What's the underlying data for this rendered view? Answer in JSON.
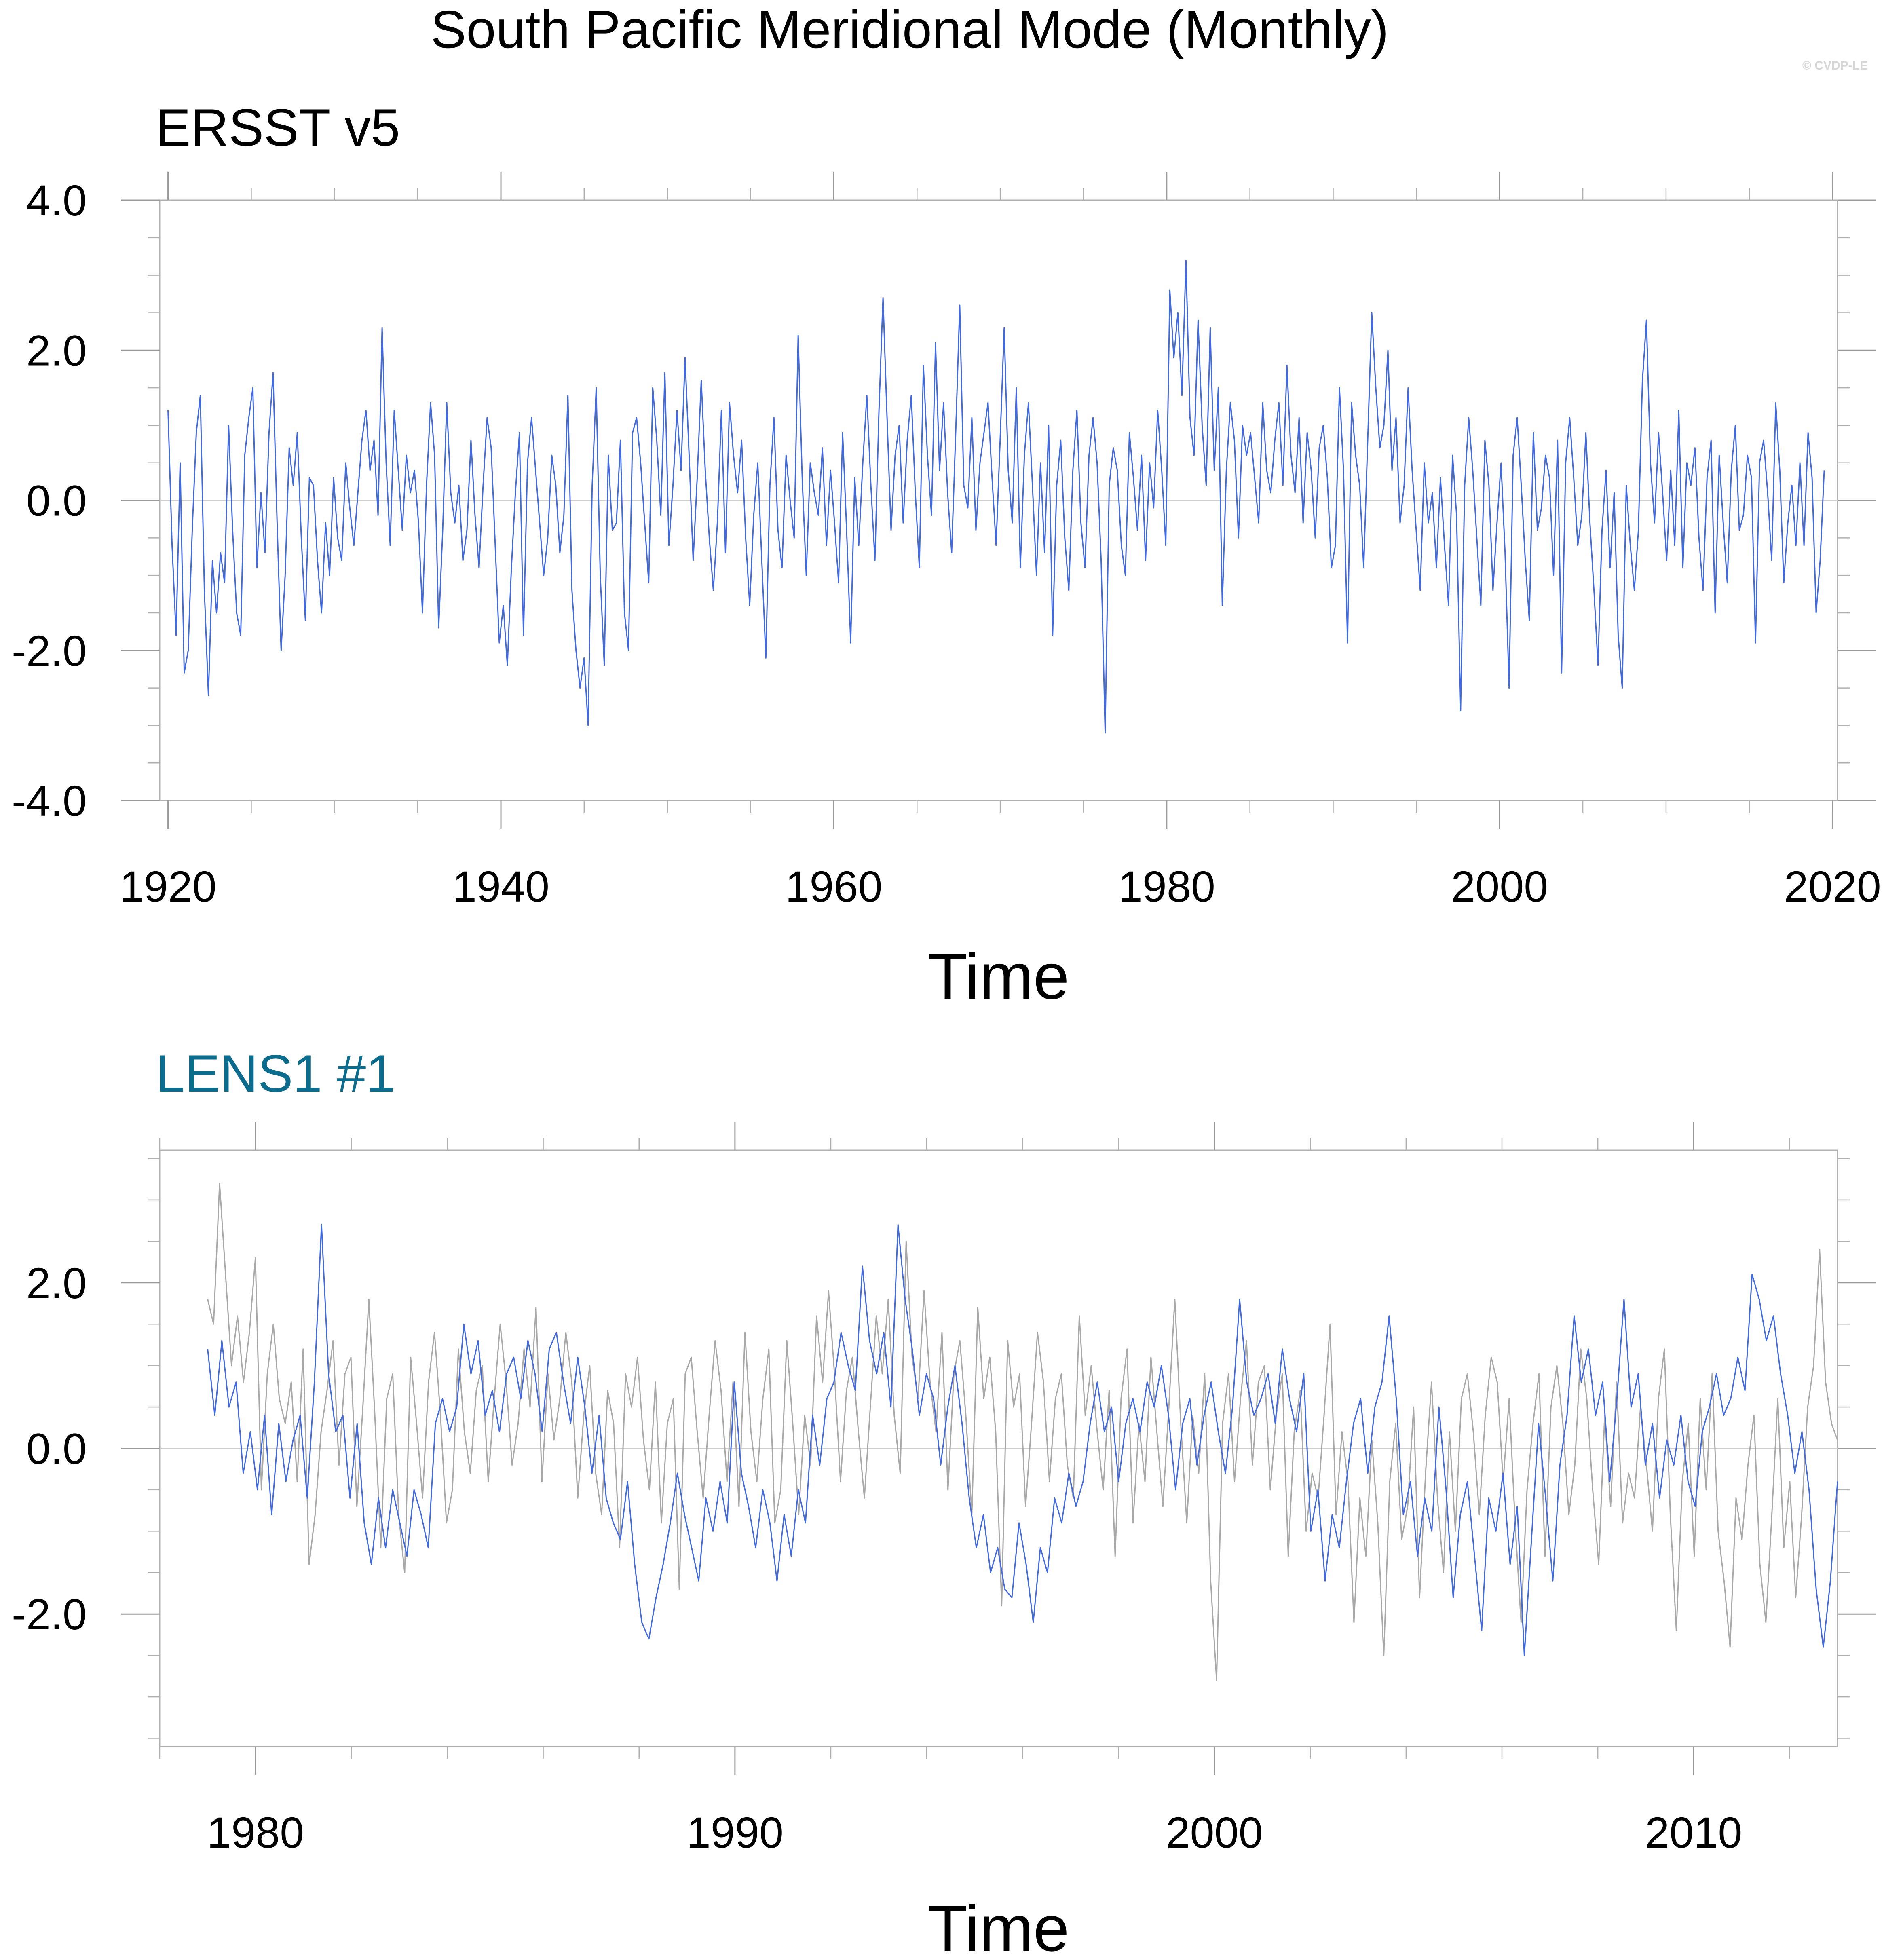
{
  "figure": {
    "title": "South Pacific Meridional Mode (Monthly)",
    "watermark": "© CVDP-LE"
  },
  "chart_data": [
    {
      "type": "line",
      "panel_title": "ERSST v5",
      "panel_title_color": "#000000",
      "xlabel": "Time",
      "ylabel": "",
      "xlim": [
        1919.5,
        2020.3
      ],
      "ylim": [
        -4.0,
        4.0
      ],
      "x_ticks": [
        1920,
        1940,
        1960,
        1980,
        2000,
        2020
      ],
      "x_tick_labels": [
        "1920",
        "1940",
        "1960",
        "1980",
        "2000",
        "2020"
      ],
      "y_ticks": [
        -4.0,
        -2.0,
        0.0,
        2.0,
        4.0
      ],
      "y_tick_labels": [
        "-4.0",
        "-2.0",
        "0.0",
        "2.0",
        "4.0"
      ],
      "zero_line": true,
      "grid": false,
      "series": [
        {
          "color": "#4169e1",
          "x_start": 1920.0,
          "x_end": 2019.5,
          "values": [
            1.2,
            -0.6,
            -1.8,
            0.5,
            -2.3,
            -2.0,
            -0.4,
            0.9,
            1.4,
            -1.2,
            -2.6,
            -0.8,
            -1.5,
            -0.7,
            -1.1,
            1.0,
            -0.4,
            -1.5,
            -1.8,
            0.6,
            1.1,
            1.5,
            -0.9,
            0.1,
            -0.7,
            0.9,
            1.7,
            -0.3,
            -2.0,
            -1.0,
            0.7,
            0.2,
            0.9,
            -0.5,
            -1.6,
            0.3,
            0.2,
            -0.8,
            -1.5,
            -0.3,
            -1.0,
            0.3,
            -0.5,
            -0.8,
            0.5,
            -0.1,
            -0.6,
            0.1,
            0.8,
            1.2,
            0.4,
            0.8,
            -0.2,
            2.3,
            0.5,
            -0.6,
            1.2,
            0.4,
            -0.4,
            0.6,
            0.1,
            0.4,
            -0.3,
            -1.5,
            0.2,
            1.3,
            0.6,
            -1.7,
            -0.4,
            1.3,
            0.1,
            -0.3,
            0.2,
            -0.8,
            -0.4,
            0.8,
            -0.2,
            -0.9,
            0.2,
            1.1,
            0.7,
            -0.6,
            -1.9,
            -1.4,
            -2.2,
            -0.9,
            0.1,
            0.9,
            -1.8,
            0.5,
            1.1,
            0.4,
            -0.3,
            -1.0,
            -0.5,
            0.6,
            0.2,
            -0.7,
            -0.2,
            1.4,
            -1.2,
            -2.0,
            -2.5,
            -2.1,
            -3.0,
            0.2,
            1.5,
            -1.0,
            -2.2,
            0.6,
            -0.4,
            -0.3,
            0.8,
            -1.5,
            -2.0,
            0.9,
            1.1,
            0.5,
            -0.3,
            -1.1,
            1.5,
            0.8,
            -0.2,
            1.7,
            -0.6,
            0.2,
            1.2,
            0.4,
            1.9,
            0.6,
            -0.8,
            0.3,
            1.6,
            0.4,
            -0.5,
            -1.2,
            -0.3,
            1.2,
            -0.7,
            1.3,
            0.6,
            0.1,
            0.8,
            -0.5,
            -1.4,
            -0.2,
            0.5,
            -0.8,
            -2.1,
            0.2,
            1.1,
            -0.4,
            -0.9,
            0.6,
            0.0,
            -0.5,
            2.2,
            0.3,
            -1.0,
            0.5,
            0.1,
            -0.2,
            0.7,
            -0.6,
            0.4,
            -0.3,
            -1.1,
            0.9,
            -0.4,
            -1.9,
            0.3,
            -0.6,
            0.5,
            1.4,
            0.2,
            -0.8,
            1.2,
            2.7,
            1.1,
            -0.4,
            0.6,
            1.0,
            -0.3,
            0.8,
            1.4,
            0.1,
            -0.9,
            1.8,
            0.6,
            -0.2,
            2.1,
            0.4,
            1.3,
            0.1,
            -0.7,
            0.9,
            2.6,
            0.2,
            -0.1,
            1.1,
            -0.4,
            0.5,
            0.9,
            1.3,
            0.3,
            -0.6,
            0.8,
            2.3,
            0.4,
            -0.3,
            1.5,
            -0.9,
            0.6,
            1.3,
            0.2,
            -1.0,
            0.5,
            -0.7,
            1.0,
            -1.8,
            0.2,
            0.8,
            -0.5,
            -1.2,
            0.4,
            1.2,
            -0.3,
            -0.9,
            0.6,
            1.1,
            0.5,
            -0.8,
            -3.1,
            0.2,
            0.7,
            0.4,
            -0.6,
            -1.0,
            0.9,
            0.3,
            -0.4,
            0.6,
            -0.8,
            0.5,
            -0.1,
            1.2,
            0.4,
            -0.6,
            2.8,
            1.9,
            2.5,
            1.4,
            3.2,
            1.1,
            0.6,
            2.4,
            1.0,
            0.2,
            2.3,
            0.4,
            1.5,
            -1.4,
            0.4,
            1.3,
            0.8,
            -0.5,
            1.0,
            0.6,
            0.9,
            0.3,
            -0.3,
            1.3,
            0.4,
            0.1,
            0.8,
            1.3,
            0.2,
            1.8,
            0.6,
            0.1,
            1.1,
            -0.3,
            0.9,
            0.4,
            -0.5,
            0.7,
            1.0,
            0.3,
            -0.9,
            -0.6,
            1.5,
            0.4,
            -1.9,
            1.3,
            0.6,
            0.2,
            -0.9,
            0.8,
            2.5,
            1.5,
            0.7,
            1.0,
            2.0,
            0.4,
            1.1,
            -0.3,
            0.2,
            1.5,
            0.4,
            -0.4,
            -1.2,
            0.5,
            -0.3,
            0.1,
            -0.9,
            0.3,
            -0.6,
            -1.4,
            0.6,
            -0.2,
            -2.8,
            0.2,
            1.1,
            0.4,
            -0.5,
            -1.4,
            0.8,
            0.2,
            -1.2,
            -0.3,
            0.5,
            -0.7,
            -2.5,
            0.6,
            1.1,
            0.2,
            -0.8,
            -1.6,
            0.9,
            -0.4,
            -0.1,
            0.6,
            0.3,
            -1.0,
            0.8,
            -2.3,
            0.5,
            1.1,
            0.3,
            -0.6,
            -0.2,
            0.9,
            -0.3,
            -1.2,
            -2.2,
            -0.4,
            0.4,
            -0.9,
            0.1,
            -1.8,
            -2.5,
            0.2,
            -0.6,
            -1.2,
            -0.4,
            1.6,
            2.4,
            0.5,
            -0.3,
            0.9,
            0.1,
            -0.8,
            0.4,
            -0.6,
            1.2,
            -0.9,
            0.5,
            0.2,
            0.7,
            -0.5,
            -1.2,
            0.3,
            0.8,
            -1.5,
            0.6,
            -0.3,
            -1.1,
            0.4,
            1.0,
            -0.4,
            -0.2,
            0.6,
            0.3,
            -1.9,
            0.5,
            0.8,
            0.1,
            -0.8,
            1.3,
            0.4,
            -1.1,
            -0.3,
            0.2,
            -0.6,
            0.5,
            -0.6,
            0.9,
            0.3,
            -1.5,
            -0.8,
            0.4
          ]
        }
      ]
    },
    {
      "type": "line",
      "panel_title": "LENS1 #1",
      "panel_title_color": "#0b6c8e",
      "xlabel": "Time",
      "ylabel": "",
      "xlim": [
        1978.0,
        2013.0
      ],
      "ylim": [
        -3.6,
        3.6
      ],
      "x_ticks": [
        1980,
        1990,
        2000,
        2010
      ],
      "x_tick_labels": [
        "1980",
        "1990",
        "2000",
        "2010"
      ],
      "y_ticks": [
        -2.0,
        0.0,
        2.0
      ],
      "y_tick_labels": [
        "-2.0",
        "0.0",
        "2.0"
      ],
      "zero_line": true,
      "grid": false,
      "series": [
        {
          "color": "#a8a8a8",
          "x_start": 1979.0,
          "x_end": 2013.0,
          "values": [
            1.8,
            1.5,
            3.2,
            2.1,
            1.0,
            1.6,
            0.8,
            1.4,
            2.3,
            -0.5,
            0.9,
            1.5,
            0.6,
            0.3,
            0.8,
            -0.4,
            1.2,
            -1.4,
            -0.8,
            0.2,
            0.7,
            1.3,
            -0.2,
            0.9,
            1.1,
            -0.7,
            0.5,
            1.8,
            0.4,
            -1.2,
            0.6,
            0.9,
            -0.8,
            -1.5,
            1.1,
            0.3,
            -0.6,
            0.8,
            1.4,
            0.4,
            -0.9,
            -0.5,
            1.2,
            0.2,
            -0.3,
            0.7,
            1.0,
            -0.4,
            0.6,
            1.5,
            0.8,
            -0.2,
            0.3,
            1.2,
            0.5,
            1.7,
            -0.4,
            0.9,
            0.1,
            0.6,
            1.4,
            0.8,
            -0.6,
            0.4,
            1.0,
            -0.3,
            -0.8,
            0.7,
            0.3,
            -1.2,
            0.9,
            0.5,
            1.1,
            0.1,
            -0.5,
            0.8,
            -0.9,
            0.3,
            0.6,
            -1.7,
            0.9,
            1.1,
            0.2,
            -0.6,
            0.4,
            1.3,
            0.7,
            -0.4,
            0.8,
            -0.7,
            1.4,
            0.2,
            -0.4,
            0.6,
            1.2,
            -0.9,
            -0.5,
            1.3,
            0.3,
            -0.8,
            0.4,
            -0.2,
            1.6,
            0.8,
            1.9,
            0.9,
            -0.4,
            0.7,
            1.1,
            0.2,
            -0.6,
            0.5,
            1.6,
            0.9,
            1.8,
            0.4,
            -0.3,
            2.5,
            1.1,
            0.6,
            1.9,
            0.8,
            0.2,
            1.4,
            -0.5,
            0.9,
            1.3,
            0.4,
            -0.8,
            1.7,
            0.6,
            1.1,
            0.2,
            -1.9,
            1.3,
            0.5,
            0.9,
            -0.7,
            0.3,
            1.4,
            0.8,
            -0.4,
            0.6,
            0.9,
            -0.2,
            -0.6,
            1.6,
            0.4,
            1.0,
            0.2,
            -0.5,
            0.7,
            -1.3,
            0.6,
            1.2,
            -0.9,
            0.3,
            -0.4,
            1.1,
            0.2,
            -0.7,
            0.5,
            1.8,
            0.3,
            -0.9,
            0.4,
            -0.3,
            0.9,
            -1.6,
            -2.8,
            0.3,
            0.9,
            -0.4,
            0.6,
            1.3,
            -0.2,
            0.8,
            1.0,
            -0.5,
            0.4,
            0.9,
            -1.3,
            0.2,
            0.7,
            -1.0,
            -0.3,
            -0.6,
            0.4,
            1.5,
            -0.8,
            0.2,
            -0.4,
            -2.1,
            -0.6,
            -1.3,
            0.1,
            -0.9,
            -2.5,
            -0.4,
            0.3,
            -1.1,
            -0.7,
            0.5,
            -1.8,
            -0.3,
            0.8,
            -0.6,
            -1.5,
            0.2,
            -1.0,
            0.6,
            0.9,
            0.2,
            -0.8,
            0.4,
            1.1,
            0.8,
            -0.4,
            0.6,
            -0.9,
            -2.1,
            -0.5,
            0.3,
            0.9,
            -1.3,
            0.5,
            1.0,
            0.3,
            -0.8,
            -0.2,
            1.2,
            0.6,
            -0.5,
            -1.4,
            0.4,
            -0.7,
            0.8,
            -0.9,
            -0.3,
            -0.6,
            0.5,
            -0.2,
            -1.0,
            0.6,
            1.2,
            -0.8,
            -2.2,
            -0.4,
            0.3,
            -1.3,
            0.6,
            -0.5,
            0.9,
            -1.0,
            -1.6,
            -2.4,
            -0.6,
            -1.1,
            -0.2,
            0.4,
            -1.4,
            -2.1,
            -0.8,
            0.6,
            -1.2,
            -0.4,
            -1.8,
            -0.8,
            0.5,
            1.0,
            2.4,
            0.8,
            0.3,
            0.1
          ]
        },
        {
          "color": "#4169e1",
          "x_start": 1979.0,
          "x_end": 2013.0,
          "values": [
            1.2,
            0.4,
            1.3,
            0.5,
            0.8,
            -0.3,
            0.2,
            -0.5,
            0.4,
            -0.8,
            0.3,
            -0.4,
            0.1,
            0.4,
            -0.6,
            0.8,
            2.7,
            0.9,
            0.2,
            0.4,
            -0.6,
            0.3,
            -0.9,
            -1.4,
            -0.6,
            -1.2,
            -0.5,
            -0.9,
            -1.3,
            -0.5,
            -0.8,
            -1.2,
            0.3,
            0.6,
            0.2,
            0.5,
            1.5,
            0.9,
            1.3,
            0.4,
            0.7,
            0.2,
            0.9,
            1.1,
            0.6,
            1.3,
            0.9,
            0.2,
            1.2,
            1.4,
            0.8,
            0.3,
            1.1,
            0.5,
            -0.3,
            0.4,
            -0.6,
            -0.9,
            -1.1,
            -0.4,
            -1.4,
            -2.1,
            -2.3,
            -1.8,
            -1.4,
            -0.9,
            -0.3,
            -0.8,
            -1.2,
            -1.6,
            -0.6,
            -1.0,
            -0.4,
            -0.9,
            0.8,
            -0.3,
            -0.7,
            -1.2,
            -0.5,
            -0.9,
            -1.6,
            -0.8,
            -1.3,
            -0.5,
            -0.9,
            0.4,
            -0.2,
            0.6,
            0.8,
            1.4,
            1.0,
            0.7,
            2.2,
            1.3,
            0.9,
            1.4,
            0.5,
            2.7,
            1.8,
            1.2,
            0.4,
            0.9,
            0.6,
            -0.2,
            0.5,
            1.0,
            0.3,
            -0.6,
            -1.2,
            -0.8,
            -1.5,
            -1.2,
            -1.7,
            -1.8,
            -0.9,
            -1.4,
            -2.1,
            -1.2,
            -1.5,
            -0.6,
            -0.9,
            -0.3,
            -0.7,
            -0.4,
            0.3,
            0.8,
            0.2,
            0.5,
            -0.4,
            0.3,
            0.6,
            0.2,
            0.8,
            0.5,
            1.0,
            0.4,
            -0.5,
            0.3,
            0.6,
            -0.2,
            0.4,
            0.8,
            0.2,
            -0.3,
            0.5,
            1.8,
            0.8,
            0.4,
            0.6,
            0.9,
            0.3,
            1.2,
            0.6,
            0.2,
            0.9,
            -1.0,
            -0.5,
            -1.6,
            -0.8,
            -1.2,
            -0.4,
            0.3,
            0.6,
            -0.3,
            0.5,
            0.8,
            1.6,
            0.6,
            -0.8,
            -0.4,
            -1.3,
            -0.6,
            -1.0,
            0.5,
            -0.5,
            -1.8,
            -0.8,
            -0.4,
            -1.3,
            -2.2,
            -0.6,
            -1.0,
            -0.3,
            -1.4,
            -0.7,
            -2.5,
            -1.1,
            0.3,
            -0.6,
            -1.6,
            -0.2,
            0.4,
            1.6,
            0.8,
            1.2,
            0.4,
            0.8,
            -0.4,
            0.6,
            1.8,
            0.5,
            0.9,
            -0.2,
            0.3,
            -0.6,
            0.1,
            -0.2,
            0.4,
            -0.4,
            -0.7,
            0.2,
            0.5,
            0.9,
            0.4,
            0.6,
            1.1,
            0.7,
            2.1,
            1.8,
            1.3,
            1.6,
            0.9,
            0.4,
            -0.3,
            0.2,
            -0.5,
            -1.7,
            -2.4,
            -1.6,
            -0.4
          ]
        }
      ]
    }
  ]
}
